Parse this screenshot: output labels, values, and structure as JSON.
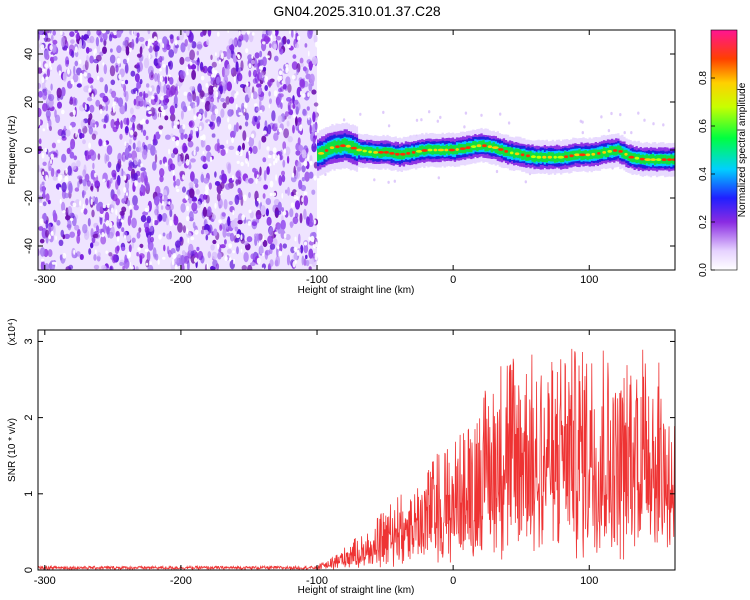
{
  "title": "GN04.2025.310.01.37.C28",
  "chart_data": [
    {
      "type": "heatmap",
      "name": "spectrogram",
      "xlabel": "Height of straight line (km)",
      "ylabel": "Frequency (Hz)",
      "xlim": [
        -305,
        163
      ],
      "ylim": [
        -50,
        50
      ],
      "xticks": [
        -300,
        -200,
        -100,
        0,
        100
      ],
      "yticks": [
        -40,
        -20,
        0,
        20,
        40
      ],
      "noise_region": {
        "x": [
          -305,
          -100
        ],
        "description": "broadband noise, purple"
      },
      "signal_ridge": {
        "x": [
          -100,
          -90,
          -80,
          -70,
          -60,
          -50,
          -40,
          -30,
          -20,
          -10,
          0,
          10,
          20,
          30,
          40,
          50,
          60,
          70,
          80,
          90,
          100,
          110,
          120,
          130,
          140,
          150,
          160
        ],
        "freq": [
          -2,
          1,
          2,
          0,
          -1,
          -1,
          -2,
          -1,
          0,
          0,
          0,
          1,
          2,
          1,
          -1,
          -2,
          -3,
          -3,
          -3,
          -2,
          -2,
          -1,
          0,
          -3,
          -4,
          -4,
          -4
        ]
      },
      "colorbar": {
        "label": "Normalized spectral amplitude",
        "ticks": [
          "0.0",
          "0.2",
          "0.4",
          "0.6",
          "0.8"
        ],
        "range": [
          0,
          1
        ]
      }
    },
    {
      "type": "line",
      "name": "snr",
      "xlabel": "Height of straight line (km)",
      "ylabel": "SNR (10 * v/v)",
      "y_multiplier": "(x10⁴)",
      "xlim": [
        -305,
        163
      ],
      "ylim": [
        0,
        3.15
      ],
      "xticks": [
        -300,
        -200,
        -100,
        0,
        100
      ],
      "yticks": [
        0,
        1,
        2,
        3
      ],
      "color": "#ee3333",
      "envelope": {
        "x": [
          -305,
          -100,
          -90,
          -80,
          -70,
          -60,
          -50,
          -40,
          -30,
          -20,
          -10,
          0,
          10,
          20,
          30,
          40,
          50,
          60,
          70,
          80,
          90,
          100,
          110,
          120,
          130,
          140,
          150,
          160
        ],
        "y": [
          0.04,
          0.06,
          0.15,
          0.3,
          0.45,
          0.6,
          0.8,
          1.0,
          1.1,
          1.3,
          1.6,
          1.7,
          1.9,
          2.3,
          2.5,
          3.1,
          2.7,
          2.9,
          2.7,
          3.0,
          2.9,
          2.9,
          3.1,
          2.4,
          2.9,
          3.1,
          2.8,
          2.2
        ]
      }
    }
  ],
  "annotations": {
    "top_xlabel": "Height of straight line (km)",
    "bottom_xlabel": "Height of straight line (km)"
  }
}
